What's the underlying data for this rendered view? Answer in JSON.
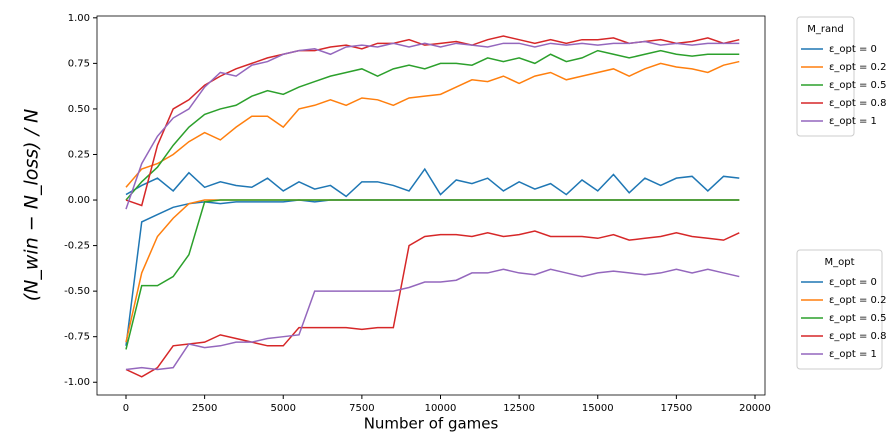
{
  "chart_data": {
    "type": "line",
    "x_label": "Number of games",
    "y_label": "(N_win − N_loss) / N",
    "legend_titles": [
      "M_rand",
      "M_opt"
    ],
    "x": [
      0,
      500,
      1000,
      1500,
      2000,
      2500,
      3000,
      3500,
      4000,
      4500,
      5000,
      5500,
      6000,
      6500,
      7000,
      7500,
      8000,
      8500,
      9000,
      9500,
      10000,
      10500,
      11000,
      11500,
      12000,
      12500,
      13000,
      13500,
      14000,
      14500,
      15000,
      15500,
      16000,
      16500,
      17000,
      17500,
      18000,
      18500,
      19000,
      19500
    ],
    "xlim": [
      -922,
      20318
    ],
    "xticks": [
      0,
      2500,
      5000,
      7500,
      10000,
      12500,
      15000,
      17500,
      20000
    ],
    "ylim": [
      -1.07,
      1.01
    ],
    "yticks": [
      {
        "value": -1,
        "label": "-1.00"
      },
      {
        "value": -0.75,
        "label": "-0.75"
      },
      {
        "value": -0.5,
        "label": "-0.50"
      },
      {
        "value": -0.25,
        "label": "-0.25"
      },
      {
        "value": 0,
        "label": "0.00"
      },
      {
        "value": 0.25,
        "label": "0.25"
      },
      {
        "value": 0.5,
        "label": "0.50"
      },
      {
        "value": 0.75,
        "label": "0.75"
      },
      {
        "value": 1,
        "label": "1.00"
      }
    ],
    "series": [
      {
        "name": "ε_opt = 0",
        "legend": 0,
        "color": "#1f77b4",
        "values": [
          0.03,
          0.08,
          0.12,
          0.05,
          0.15,
          0.07,
          0.1,
          0.08,
          0.07,
          0.12,
          0.05,
          0.1,
          0.06,
          0.08,
          0.02,
          0.1,
          0.1,
          0.08,
          0.05,
          0.17,
          0.03,
          0.11,
          0.09,
          0.12,
          0.05,
          0.1,
          0.06,
          0.09,
          0.03,
          0.11,
          0.05,
          0.14,
          0.04,
          0.12,
          0.08,
          0.12,
          0.13,
          0.05,
          0.13,
          0.12
        ]
      },
      {
        "name": "ε_opt = 0.2",
        "legend": 0,
        "color": "#ff7f0e",
        "values": [
          0.07,
          0.17,
          0.2,
          0.25,
          0.32,
          0.37,
          0.33,
          0.4,
          0.46,
          0.46,
          0.4,
          0.5,
          0.52,
          0.55,
          0.52,
          0.56,
          0.55,
          0.52,
          0.56,
          0.57,
          0.58,
          0.62,
          0.66,
          0.65,
          0.68,
          0.64,
          0.68,
          0.7,
          0.66,
          0.68,
          0.7,
          0.72,
          0.68,
          0.72,
          0.75,
          0.73,
          0.72,
          0.7,
          0.74,
          0.76
        ]
      },
      {
        "name": "ε_opt = 0.5",
        "legend": 0,
        "color": "#2ca02c",
        "values": [
          0.0,
          0.1,
          0.18,
          0.3,
          0.4,
          0.47,
          0.5,
          0.52,
          0.57,
          0.6,
          0.58,
          0.62,
          0.65,
          0.68,
          0.7,
          0.72,
          0.68,
          0.72,
          0.74,
          0.72,
          0.75,
          0.75,
          0.74,
          0.78,
          0.76,
          0.78,
          0.75,
          0.8,
          0.76,
          0.78,
          0.82,
          0.8,
          0.78,
          0.8,
          0.82,
          0.8,
          0.79,
          0.8,
          0.8,
          0.8
        ]
      },
      {
        "name": "ε_opt = 0.8",
        "legend": 0,
        "color": "#d62728",
        "values": [
          0.0,
          -0.03,
          0.3,
          0.5,
          0.55,
          0.63,
          0.68,
          0.72,
          0.75,
          0.78,
          0.8,
          0.82,
          0.82,
          0.84,
          0.85,
          0.83,
          0.86,
          0.86,
          0.88,
          0.85,
          0.86,
          0.87,
          0.85,
          0.88,
          0.9,
          0.88,
          0.86,
          0.88,
          0.86,
          0.88,
          0.88,
          0.89,
          0.86,
          0.87,
          0.88,
          0.86,
          0.87,
          0.89,
          0.86,
          0.88
        ]
      },
      {
        "name": "ε_opt = 1",
        "legend": 0,
        "color": "#9467bd",
        "values": [
          -0.05,
          0.2,
          0.35,
          0.45,
          0.5,
          0.62,
          0.7,
          0.68,
          0.74,
          0.76,
          0.8,
          0.82,
          0.83,
          0.8,
          0.84,
          0.85,
          0.84,
          0.86,
          0.84,
          0.86,
          0.84,
          0.86,
          0.85,
          0.84,
          0.86,
          0.86,
          0.84,
          0.86,
          0.85,
          0.86,
          0.85,
          0.86,
          0.86,
          0.87,
          0.85,
          0.86,
          0.85,
          0.86,
          0.86,
          0.86
        ]
      },
      {
        "name": "ε_opt = 0",
        "legend": 1,
        "color": "#1f77b4",
        "values": [
          -0.8,
          -0.12,
          -0.08,
          -0.04,
          -0.02,
          -0.01,
          -0.02,
          -0.01,
          -0.01,
          -0.01,
          -0.01,
          0,
          -0.01,
          0,
          0,
          0,
          0,
          0,
          0,
          0,
          0,
          0,
          0,
          0,
          0,
          0,
          0,
          0,
          0,
          0,
          0,
          0,
          0,
          0,
          0,
          0,
          0,
          0,
          0,
          0
        ]
      },
      {
        "name": "ε_opt = 0.2",
        "legend": 1,
        "color": "#ff7f0e",
        "values": [
          -0.78,
          -0.4,
          -0.2,
          -0.1,
          -0.02,
          0,
          0,
          0,
          0,
          0,
          0,
          0,
          0,
          0,
          0,
          0,
          0,
          0,
          0,
          0,
          0,
          0,
          0,
          0,
          0,
          0,
          0,
          0,
          0,
          0,
          0,
          0,
          0,
          0,
          0,
          0,
          0,
          0,
          0,
          0
        ]
      },
      {
        "name": "ε_opt = 0.5",
        "legend": 1,
        "color": "#2ca02c",
        "values": [
          -0.82,
          -0.47,
          -0.47,
          -0.42,
          -0.3,
          -0.01,
          0,
          0,
          0,
          0,
          0,
          0,
          0,
          0,
          0,
          0,
          0,
          0,
          0,
          0,
          0,
          0,
          0,
          0,
          0,
          0,
          0,
          0,
          0,
          0,
          0,
          0,
          0,
          0,
          0,
          0,
          0,
          0,
          0,
          0
        ]
      },
      {
        "name": "ε_opt = 0.8",
        "legend": 1,
        "color": "#d62728",
        "values": [
          -0.93,
          -0.97,
          -0.92,
          -0.8,
          -0.79,
          -0.78,
          -0.74,
          -0.76,
          -0.78,
          -0.8,
          -0.8,
          -0.7,
          -0.7,
          -0.7,
          -0.7,
          -0.71,
          -0.7,
          -0.7,
          -0.25,
          -0.2,
          -0.19,
          -0.19,
          -0.2,
          -0.18,
          -0.2,
          -0.19,
          -0.17,
          -0.2,
          -0.2,
          -0.2,
          -0.21,
          -0.19,
          -0.22,
          -0.21,
          -0.2,
          -0.18,
          -0.2,
          -0.21,
          -0.22,
          -0.18
        ]
      },
      {
        "name": "ε_opt = 1",
        "legend": 1,
        "color": "#9467bd",
        "values": [
          -0.93,
          -0.92,
          -0.93,
          -0.92,
          -0.79,
          -0.81,
          -0.8,
          -0.78,
          -0.78,
          -0.76,
          -0.75,
          -0.74,
          -0.5,
          -0.5,
          -0.5,
          -0.5,
          -0.5,
          -0.5,
          -0.48,
          -0.45,
          -0.45,
          -0.44,
          -0.4,
          -0.4,
          -0.38,
          -0.4,
          -0.41,
          -0.38,
          -0.4,
          -0.42,
          -0.4,
          -0.39,
          -0.4,
          -0.41,
          -0.4,
          -0.38,
          -0.4,
          -0.38,
          -0.4,
          -0.42
        ]
      }
    ]
  }
}
